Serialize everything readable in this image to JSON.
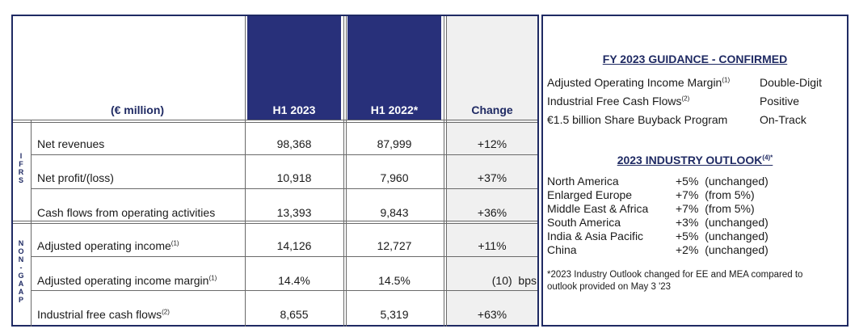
{
  "table": {
    "header": {
      "unit_label": "(€ million)",
      "col1": "H1 2023",
      "col2": "H1 2022*",
      "col3": "Change"
    },
    "sections": {
      "ifrs": "I F R S",
      "non_gaap": "N O N - G A A P"
    },
    "rows": [
      {
        "label": "Net revenues",
        "sup": "",
        "h1_2023": "98,368",
        "h1_2022": "87,999",
        "change": "+12%"
      },
      {
        "label": "Net profit/(loss)",
        "sup": "",
        "h1_2023": "10,918",
        "h1_2022": "7,960",
        "change": "+37%"
      },
      {
        "label": "Cash flows from operating activities",
        "sup": "",
        "h1_2023": "13,393",
        "h1_2022": "9,843",
        "change": "+36%"
      },
      {
        "label": "Adjusted operating income",
        "sup": "(1)",
        "h1_2023": "14,126",
        "h1_2022": "12,727",
        "change": "+11%"
      },
      {
        "label": "Adjusted operating income margin",
        "sup": "(1)",
        "h1_2023": "14.4%",
        "h1_2022": "14.5%",
        "change": "(10)  bps"
      },
      {
        "label": "Industrial free cash flows",
        "sup": "(2)",
        "h1_2023": "8,655",
        "h1_2022": "5,319",
        "change": "+63%"
      }
    ]
  },
  "guidance": {
    "title": "FY 2023 GUIDANCE - CONFIRMED",
    "items": [
      {
        "label": "Adjusted Operating Income Margin",
        "sup": "(1)",
        "value": "Double-Digit"
      },
      {
        "label": "Industrial Free Cash Flows",
        "sup": "(2)",
        "value": "Positive"
      },
      {
        "label": "€1.5 billion Share Buyback Program",
        "sup": "",
        "value": "On-Track"
      }
    ]
  },
  "outlook": {
    "title": "2023 INDUSTRY OUTLOOK",
    "title_sup": "(4)*",
    "items": [
      {
        "region": "North America",
        "value": "+5%  (unchanged)"
      },
      {
        "region": "Enlarged Europe",
        "value": "+7%  (from 5%)"
      },
      {
        "region": "Middle East & Africa",
        "value": "+7%  (from 5%)"
      },
      {
        "region": "South America",
        "value": "+3%  (unchanged)"
      },
      {
        "region": "India & Asia Pacific",
        "value": "+5%  (unchanged)"
      },
      {
        "region": "China",
        "value": "+2%  (unchanged)"
      }
    ],
    "footnote": "*2023 Industry Outlook changed for EE and MEA compared to outlook provided on May 3 '23"
  }
}
